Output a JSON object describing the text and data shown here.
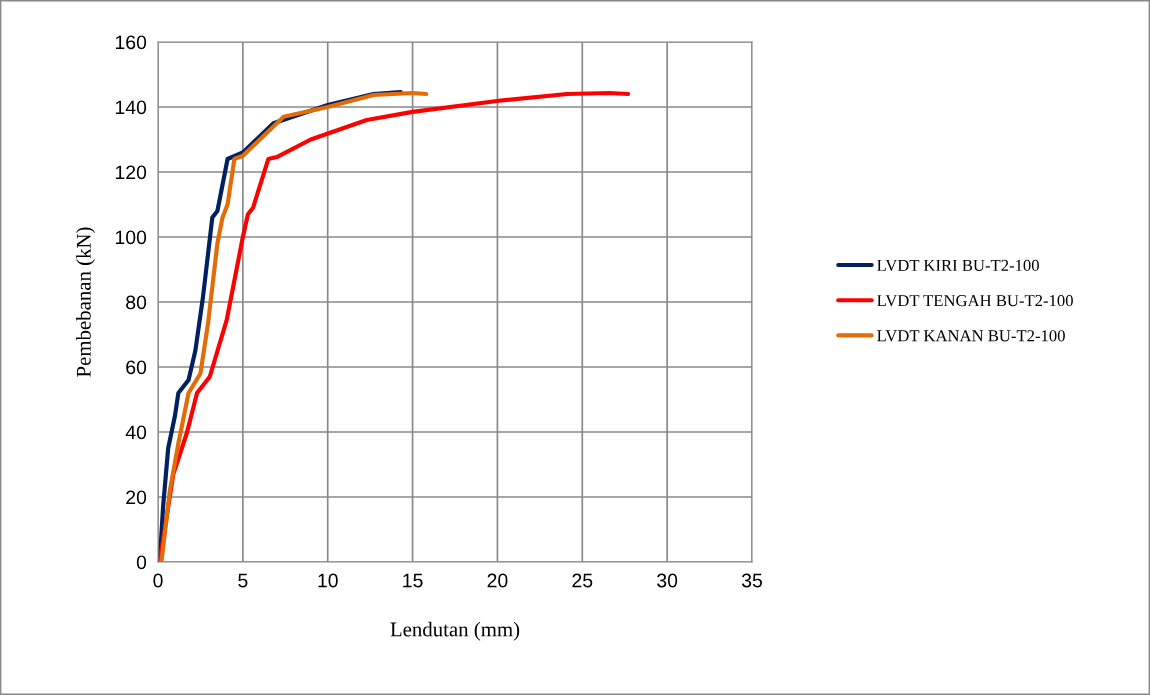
{
  "chart_data": {
    "type": "line",
    "xlabel": "Lendutan (mm)",
    "ylabel": "Pembebanan (kN)",
    "xlim": [
      0,
      35
    ],
    "xticks": [
      0,
      5,
      10,
      15,
      20,
      25,
      30,
      35
    ],
    "ylim": [
      0,
      160
    ],
    "yticks": [
      0,
      20,
      40,
      60,
      80,
      100,
      120,
      140,
      160
    ],
    "grid": true,
    "legend": "right",
    "marker": "none",
    "line_style": "solid",
    "series": [
      {
        "name": "LVDT KIRI BU-T2-100",
        "color": "#002060",
        "x": [
          0.1,
          0.3,
          0.6,
          1.0,
          1.2,
          1.8,
          2.2,
          2.65,
          3.2,
          3.5,
          4.1,
          5.0,
          6.8,
          10,
          12.7,
          14.3
        ],
        "values": [
          0,
          17,
          35,
          45,
          52,
          56,
          65,
          81.5,
          106,
          108,
          124,
          126,
          135,
          140.6,
          144,
          144.6
        ]
      },
      {
        "name": "LVDT TENGAH BU-T2-100",
        "color": "#ff0000",
        "x": [
          0.1,
          0.9,
          1.7,
          2.3,
          3.05,
          4.05,
          5.0,
          5.3,
          5.6,
          6.5,
          7.0,
          9,
          12.3,
          15,
          20.2,
          24.1,
          26.6,
          27.7
        ],
        "values": [
          0,
          27,
          39.7,
          52,
          57,
          74.5,
          100,
          107,
          109,
          124,
          124.6,
          130,
          136,
          138.5,
          142,
          144,
          144.3,
          144
        ]
      },
      {
        "name": "LVDT KANAN BU-T2-100",
        "color": "#e36c09",
        "x": [
          0.2,
          0.7,
          1.2,
          1.8,
          2.5,
          2.95,
          3.5,
          3.8,
          4.1,
          4.5,
          5.0,
          7.4,
          10,
          12.7,
          15,
          15.8
        ],
        "values": [
          0,
          22,
          36.5,
          52,
          58,
          73.5,
          98,
          106,
          110,
          124,
          125,
          137,
          140,
          143.7,
          144.3,
          144
        ]
      }
    ]
  }
}
